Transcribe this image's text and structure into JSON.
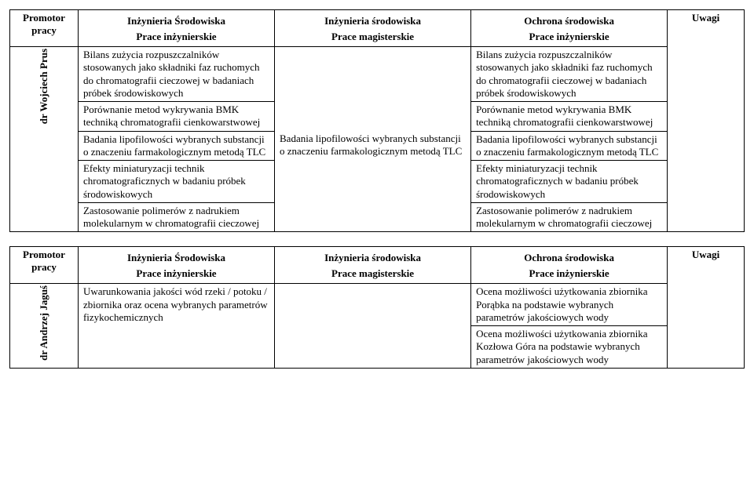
{
  "headers": {
    "promotor": "Promotor pracy",
    "colA": "Inżynieria Środowiska",
    "colB": "Inżynieria środowiska",
    "colC": "Ochrona środowiska",
    "uwagi": "Uwagi",
    "subA": "Prace inżynierskie",
    "subB": "Prace magisterskie",
    "subC": "Prace inżynierskie"
  },
  "table1": {
    "promotor": "dr Wojciech Prus",
    "rows": [
      {
        "a": "Bilans zużycia rozpuszczalników stosowanych  jako składniki faz ruchomych do chromatografii cieczowej w badaniach próbek środowiskowych",
        "b": "",
        "c": "Bilans zużycia rozpuszczalników stosowanych  jako składniki faz ruchomych do chromatografii cieczowej w badaniach próbek środowiskowych"
      },
      {
        "a": "Porównanie metod wykrywania BMK techniką chromatografii cienkowarstwowej",
        "b": "",
        "c": "Porównanie metod wykrywania BMK techniką chromatografii cienkowarstwowej"
      },
      {
        "a": "Badania lipofilowości wybranych substancji o znaczeniu farmakologicznym metodą TLC",
        "b": "Badania lipofilowości wybranych substancji o znaczeniu farmakologicznym metodą TLC",
        "c": "Badania lipofilowości wybranych substancji o znaczeniu farmakologicznym metodą TLC"
      },
      {
        "a": "Efekty miniaturyzacji technik chromatograficznych w badaniu próbek środowiskowych",
        "b": "",
        "c": "Efekty miniaturyzacji technik chromatograficznych w badaniu próbek środowiskowych"
      },
      {
        "a": "Zastosowanie polimerów z nadrukiem molekularnym w chromatografii cieczowej",
        "b": "",
        "c": "Zastosowanie polimerów z nadrukiem molekularnym w chromatografii cieczowej"
      }
    ]
  },
  "table2": {
    "promotor": "dr Andrzej Jaguś",
    "rows": [
      {
        "a": "Uwarunkowania jakości wód rzeki / potoku / zbiornika oraz ocena wybranych parametrów fizykochemicznych",
        "b": "",
        "c": "Ocena możliwości użytkowania zbiornika Porąbka na podstawie wybranych parametrów jakościowych wody"
      },
      {
        "a": "",
        "b": "",
        "c": "Ocena możliwości użytkowania zbiornika Kozłowa Góra na podstawie wybranych parametrów jakościowych wody"
      }
    ]
  }
}
